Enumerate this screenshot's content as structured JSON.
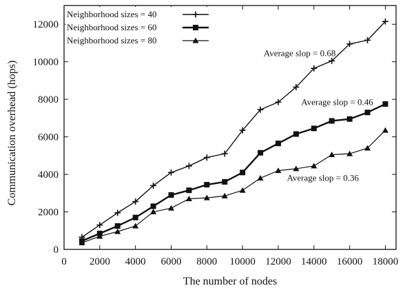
{
  "chart_data": {
    "type": "line",
    "title": "",
    "xlabel": "The number of nodes",
    "ylabel": "Communication overhead (hops)",
    "xlim": [
      0,
      18600
    ],
    "ylim": [
      0,
      13000
    ],
    "x_ticks": [
      0,
      2000,
      4000,
      6000,
      8000,
      10000,
      12000,
      14000,
      16000,
      18000
    ],
    "y_ticks": [
      0,
      2000,
      4000,
      6000,
      8000,
      10000,
      12000
    ],
    "grid": false,
    "legend_position": "top-left",
    "x": [
      1000,
      2000,
      3000,
      4000,
      5000,
      6000,
      7000,
      8000,
      9000,
      10000,
      11000,
      12000,
      13000,
      14000,
      15000,
      16000,
      17000,
      18000
    ],
    "series": [
      {
        "name": "Neighborhood sizes = 40",
        "marker": "plus",
        "color": "#111111",
        "values": [
          650,
          1300,
          1950,
          2550,
          3400,
          4100,
          4450,
          4900,
          5100,
          6350,
          7450,
          7850,
          8650,
          9650,
          10050,
          10950,
          11150,
          12150
        ]
      },
      {
        "name": "Neighborhood sizes = 60",
        "marker": "square",
        "color": "#111111",
        "values": [
          450,
          850,
          1250,
          1700,
          2300,
          2900,
          3150,
          3450,
          3600,
          4100,
          5150,
          5650,
          6150,
          6450,
          6850,
          6950,
          7300,
          7750
        ]
      },
      {
        "name": "Neighborhood sizes = 80",
        "marker": "triangle",
        "color": "#111111",
        "values": [
          350,
          700,
          950,
          1250,
          2000,
          2200,
          2700,
          2750,
          2850,
          3150,
          3800,
          4200,
          4300,
          4450,
          5050,
          5100,
          5400,
          6350
        ]
      }
    ],
    "annotations": [
      {
        "text": "Average slop = 0.68",
        "x": 13200,
        "y": 10300
      },
      {
        "text": "Average slop = 0.46",
        "x": 15300,
        "y": 7700
      },
      {
        "text": "Average slop = 0.36",
        "x": 14500,
        "y": 3650
      }
    ]
  }
}
